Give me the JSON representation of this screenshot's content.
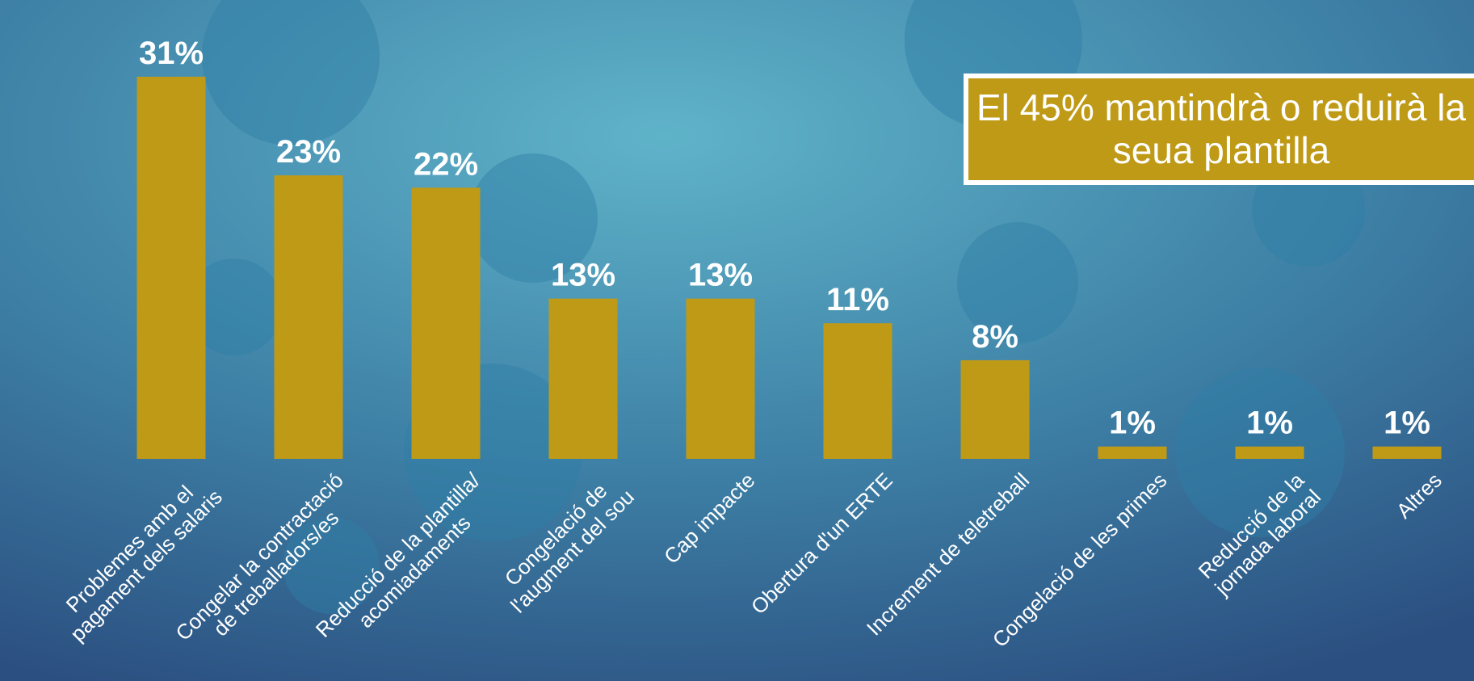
{
  "chart_data": {
    "type": "bar",
    "categories": [
      "Problemes amb el\npagament dels salaris",
      "Congelar la contractació\nde treballadors/es",
      "Reducció de la plantilla/\nacomiadaments",
      "Congelació de\nl'augment del sou",
      "Cap impacte",
      "Obertura d'un ERTE",
      "Increment de teletreball",
      "Congelació de les primes",
      "Reducció de la\njornada laboral",
      "Altres"
    ],
    "values": [
      31,
      23,
      22,
      13,
      13,
      11,
      8,
      1,
      1,
      1
    ],
    "value_labels": [
      "31%",
      "23%",
      "22%",
      "13%",
      "13%",
      "11%",
      "8%",
      "1%",
      "1%",
      "1%"
    ],
    "color": "#bf9a17",
    "annotation": "El 45% mantindrà o reduirà la seua plantilla"
  }
}
